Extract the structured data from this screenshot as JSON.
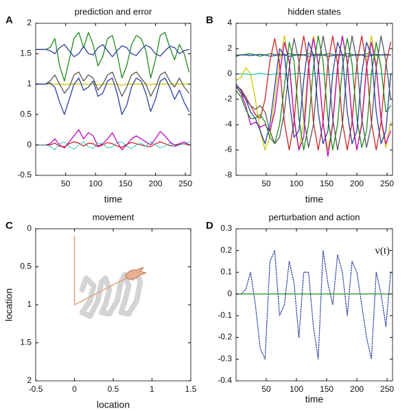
{
  "chart_data": [
    {
      "type": "line",
      "panel_label": "A",
      "title": "prediction and error",
      "x_label": "time",
      "x": [
        0,
        8,
        16,
        24,
        32,
        40,
        48,
        56,
        64,
        72,
        80,
        88,
        96,
        104,
        112,
        120,
        128,
        136,
        144,
        152,
        160,
        168,
        176,
        184,
        192,
        200,
        208,
        216,
        224,
        232,
        240,
        248,
        256
      ],
      "xlim": [
        0,
        259
      ],
      "xticks": [
        50,
        100,
        150,
        200,
        250
      ],
      "ylim": [
        -0.5,
        2
      ],
      "yticks": [
        -0.5,
        0,
        0.5,
        1,
        1.5,
        2
      ],
      "series": [
        {
          "color": "#1a8a1a",
          "values": [
            1.57,
            1.57,
            1.57,
            1.6,
            1.75,
            1.3,
            1.05,
            1.4,
            1.75,
            1.85,
            1.6,
            1.85,
            1.65,
            1.3,
            1.45,
            1.75,
            1.8,
            1.5,
            1.1,
            1.3,
            1.65,
            1.8,
            1.75,
            1.55,
            1.1,
            1.4,
            1.8,
            1.85,
            1.6,
            1.4,
            1.65,
            1.5,
            1.2
          ]
        },
        {
          "color": "#2a3d9e",
          "values": [
            1.57,
            1.57,
            1.57,
            1.55,
            1.5,
            1.6,
            1.65,
            1.55,
            1.45,
            1.5,
            1.62,
            1.5,
            1.48,
            1.6,
            1.65,
            1.55,
            1.45,
            1.55,
            1.63,
            1.6,
            1.5,
            1.47,
            1.57,
            1.64,
            1.6,
            1.5,
            1.46,
            1.55,
            1.62,
            1.6,
            1.5,
            1.55,
            1.57
          ]
        },
        {
          "color": "#c8c800",
          "values": [
            1,
            1,
            1,
            1,
            1,
            1,
            0.99,
            1,
            1,
            1,
            1,
            1,
            1,
            0.99,
            1,
            1,
            1,
            1,
            0.98,
            1,
            1,
            1,
            1,
            1,
            0.99,
            1,
            1,
            1,
            1,
            1,
            1,
            1,
            1
          ]
        },
        {
          "color": "#555555",
          "values": [
            1,
            1,
            1,
            1.05,
            1.15,
            1.0,
            0.85,
            0.95,
            1.15,
            1.2,
            1.05,
            1.15,
            1.1,
            0.9,
            1.0,
            1.15,
            1.2,
            1.0,
            0.8,
            0.95,
            1.15,
            1.2,
            1.1,
            1.0,
            0.8,
            0.95,
            1.15,
            1.2,
            1.05,
            0.95,
            1.1,
            0.95,
            0.85
          ]
        },
        {
          "color": "#2a3d9e",
          "values": [
            1,
            1,
            1,
            1.02,
            0.95,
            0.7,
            0.5,
            0.75,
            1.0,
            1.1,
            0.9,
            0.95,
            1.05,
            0.8,
            0.85,
            1.05,
            1.1,
            0.85,
            0.5,
            0.65,
            0.95,
            1.1,
            1.05,
            0.85,
            0.55,
            0.75,
            1.05,
            1.1,
            0.95,
            0.75,
            0.9,
            0.7,
            0.55
          ]
        },
        {
          "color": "#c000c0",
          "values": [
            0,
            0,
            0,
            0.02,
            0.1,
            0,
            -0.05,
            0.05,
            0.15,
            0.25,
            0.1,
            0.2,
            0.15,
            -0.02,
            0.02,
            0.1,
            0.2,
            0.05,
            -0.08,
            0,
            0.1,
            0.15,
            0.1,
            0.05,
            0,
            0.1,
            0.22,
            0.15,
            0.05,
            0,
            0.02,
            0.05,
            0
          ]
        },
        {
          "color": "#d02020",
          "values": [
            0,
            0,
            0,
            0,
            0.03,
            -0.02,
            -0.03,
            0.02,
            0.05,
            0.03,
            -0.02,
            0.03,
            0.02,
            -0.03,
            0,
            0.04,
            0.02,
            -0.02,
            -0.04,
            0.01,
            0.04,
            0.02,
            0,
            -0.02,
            -0.03,
            0.02,
            0.05,
            0.02,
            -0.01,
            -0.02,
            0.01,
            0.02,
            0
          ]
        },
        {
          "color": "#20c0c0",
          "style": "dotted",
          "values": [
            0,
            0,
            0,
            -0.02,
            -0.08,
            0.02,
            0.05,
            -0.03,
            -0.07,
            0,
            0.05,
            -0.03,
            -0.06,
            0.03,
            0.02,
            -0.05,
            -0.03,
            0.04,
            0.05,
            -0.02,
            -0.06,
            0,
            0.03,
            -0.02,
            0.05,
            0,
            -0.05,
            -0.02,
            0.03,
            -0.03,
            0,
            0.02,
            0.05
          ]
        }
      ]
    },
    {
      "type": "line",
      "panel_label": "B",
      "title": "hidden states",
      "x_label": "time",
      "x": [
        0,
        8,
        16,
        24,
        32,
        40,
        48,
        56,
        64,
        72,
        80,
        88,
        96,
        104,
        112,
        120,
        128,
        136,
        144,
        152,
        160,
        168,
        176,
        184,
        192,
        200,
        208,
        216,
        224,
        232,
        240,
        248,
        256
      ],
      "xlim": [
        0,
        259
      ],
      "xticks": [
        50,
        100,
        150,
        200,
        250
      ],
      "ylim": [
        -8,
        4
      ],
      "yticks": [
        -8,
        -6,
        -4,
        -2,
        0,
        2,
        4
      ],
      "series": [
        {
          "color": "#1a8a1a",
          "values": [
            1.5,
            1.5,
            1.55,
            1.6,
            1.5,
            1.4,
            1.5,
            1.6,
            1.55,
            1.45,
            1.5,
            1.6,
            1.55,
            1.45,
            1.5,
            1.6,
            1.55,
            1.45,
            1.5,
            1.6,
            1.55,
            1.45,
            1.5,
            1.6,
            1.55,
            1.45,
            1.5,
            1.6,
            1.55,
            1.45,
            1.5,
            1.55,
            1.5
          ]
        },
        {
          "color": "#2a3d9e",
          "values": [
            1.4,
            1.5,
            1.5,
            1.45,
            1.5,
            1.55,
            1.5,
            1.4,
            1.45,
            1.55,
            1.5,
            1.4,
            1.45,
            1.55,
            1.5,
            1.4,
            1.45,
            1.55,
            1.5,
            1.4,
            1.45,
            1.55,
            1.5,
            1.4,
            1.45,
            1.55,
            1.5,
            1.4,
            1.45,
            1.55,
            1.5,
            1.5,
            1.5
          ]
        },
        {
          "color": "#20c0c0",
          "values": [
            0,
            0,
            0,
            -0.05,
            0,
            0.05,
            0,
            -0.05,
            0,
            0.05,
            0,
            -0.05,
            0,
            0.05,
            0,
            -0.05,
            0,
            0.05,
            0,
            -0.05,
            0,
            0.05,
            0,
            -0.05,
            0,
            0.05,
            0,
            -0.05,
            0,
            0.05,
            0,
            0,
            0
          ]
        },
        {
          "color": "#c8c800",
          "values": [
            -0.5,
            -0.3,
            0.5,
            0,
            -2,
            -4.5,
            -6,
            -5,
            -2,
            1,
            3,
            0.8,
            -3.8,
            -6,
            -3.8,
            0.8,
            3,
            0.8,
            -3.8,
            -6,
            -3.8,
            0.8,
            3,
            0.8,
            -3.8,
            -6,
            -3.8,
            0.8,
            3,
            0.8,
            -3.8,
            -5.8,
            -3.8
          ]
        },
        {
          "color": "#d02020",
          "values": [
            -1,
            -1.2,
            -1.8,
            -2.5,
            -3.2,
            -3.5,
            -2,
            1,
            2.8,
            0.8,
            -3.8,
            -6,
            -3.8,
            0.8,
            3,
            0.8,
            -3.8,
            -6,
            -3.8,
            0.8,
            3,
            0.8,
            -3.8,
            -6,
            -3.8,
            0.8,
            3,
            0.8,
            -3.8,
            -6,
            -3.8,
            0.8,
            2.5
          ]
        },
        {
          "color": "#c000c0",
          "values": [
            -1,
            -1.5,
            -2.5,
            -4,
            -3.8,
            -4.2,
            -4,
            -4.5,
            -3,
            0,
            2.5,
            1,
            -3.5,
            -6,
            -5,
            0.5,
            2.8,
            0.8,
            -3.8,
            -6.5,
            -4,
            0.5,
            3,
            1,
            -3.5,
            -6,
            -4,
            0.5,
            2.5,
            0.5,
            -3.5,
            -5.5,
            -4.5
          ]
        },
        {
          "color": "#1a8a1a",
          "values": [
            -1.3,
            -1.8,
            -2.8,
            -3.5,
            -3.5,
            -3.2,
            -3.8,
            -5,
            -5.5,
            -4,
            -1,
            2.5,
            1,
            -3.5,
            -6,
            -4,
            0.5,
            3,
            1,
            -3.5,
            -6,
            -4,
            0.5,
            2.8,
            0.8,
            -3.5,
            -5.8,
            -4.5,
            0,
            2.5,
            0.5,
            -3,
            -2.5
          ]
        },
        {
          "color": "#555555",
          "values": [
            -1,
            -1.5,
            -2,
            -2.5,
            -2.8,
            -2.5,
            -3,
            -4.5,
            -5.5,
            -5,
            -3,
            0.5,
            2.8,
            1,
            -3.5,
            -5.8,
            -4,
            0.5,
            3,
            1,
            -3.5,
            -6,
            -4,
            0.5,
            3,
            1,
            -3.5,
            -5.8,
            -4,
            0.5,
            3,
            1,
            -2
          ]
        },
        {
          "color": "#2a3d9e",
          "values": [
            -0.8,
            -1.3,
            -2,
            -3,
            -3.5,
            -4.5,
            -5.5,
            -4,
            -1,
            2,
            1.5,
            -2,
            -5,
            -4.5,
            -0.5,
            2.5,
            1.5,
            -3,
            -5.5,
            -4.5,
            0,
            2.5,
            1.5,
            -3,
            -5.5,
            -4.5,
            0,
            2.5,
            1.5,
            -3,
            -5.5,
            -4.5,
            0
          ]
        }
      ]
    },
    {
      "type": "trajectory",
      "panel_label": "C",
      "title": "movement",
      "x_label": "location",
      "y_label": "location",
      "xlim": [
        -0.5,
        1.5
      ],
      "xticks": [
        -0.5,
        0,
        0.5,
        1,
        1.5
      ],
      "ylim": [
        0,
        2
      ],
      "yticks": [
        0,
        0.5,
        1,
        1.5,
        2
      ],
      "y_inverted": true,
      "series": [
        {
          "color": "#d4d4d4",
          "line_width": 8,
          "x": [
            0.1,
            0.15,
            0.25,
            0.2,
            0.1,
            0.2,
            0.3,
            0.35,
            0.4,
            0.45,
            0.4,
            0.35,
            0.45,
            0.55,
            0.6,
            0.65,
            0.7,
            0.65,
            0.6,
            0.7,
            0.8,
            0.85,
            0.8,
            0.75
          ],
          "values": [
            0.8,
            0.65,
            0.75,
            0.95,
            1.1,
            1.15,
            0.95,
            0.7,
            0.65,
            0.8,
            1.0,
            1.1,
            1.12,
            0.95,
            0.7,
            0.6,
            0.75,
            0.95,
            1.1,
            1.12,
            0.95,
            0.7,
            0.58,
            0.65
          ]
        },
        {
          "color": "#e0a080",
          "line_width": 1.5,
          "x": [
            0,
            0,
            0.8
          ],
          "values": [
            0.1,
            1,
            0.58
          ]
        }
      ]
    },
    {
      "type": "line",
      "panel_label": "D",
      "title": "perturbation and action",
      "x_label": "time",
      "annotation": "v(t)",
      "x": [
        0,
        8,
        16,
        24,
        32,
        40,
        48,
        56,
        64,
        72,
        80,
        88,
        96,
        104,
        112,
        120,
        128,
        136,
        144,
        152,
        160,
        168,
        176,
        184,
        192,
        200,
        208,
        216,
        224,
        232,
        240,
        248,
        256
      ],
      "xlim": [
        0,
        259
      ],
      "xticks": [
        50,
        100,
        150,
        200,
        250
      ],
      "ylim": [
        -0.4,
        0.3
      ],
      "yticks": [
        -0.4,
        -0.3,
        -0.2,
        -0.1,
        0,
        0.1,
        0.2,
        0.3
      ],
      "series": [
        {
          "color": "#2a3d9e",
          "style": "dotted",
          "values": [
            0,
            0,
            0.02,
            0.1,
            -0.05,
            -0.25,
            -0.3,
            0.15,
            0.2,
            -0.1,
            -0.05,
            0.15,
            0.05,
            -0.2,
            0.1,
            0.1,
            -0.15,
            -0.3,
            0.2,
            0.05,
            -0.05,
            0.18,
            0.1,
            -0.1,
            0.15,
            0.1,
            -0.05,
            -0.2,
            -0.3,
            0.1,
            0,
            -0.15,
            0.1
          ]
        },
        {
          "color": "#1a8a1a",
          "values": [
            0,
            0,
            0,
            0,
            0,
            0,
            0,
            0,
            0,
            0,
            0,
            0,
            0,
            0,
            0,
            0,
            0,
            0,
            0,
            0,
            0,
            0,
            0,
            0,
            0,
            0,
            0,
            0,
            0,
            0,
            0,
            0,
            0
          ]
        }
      ]
    }
  ]
}
